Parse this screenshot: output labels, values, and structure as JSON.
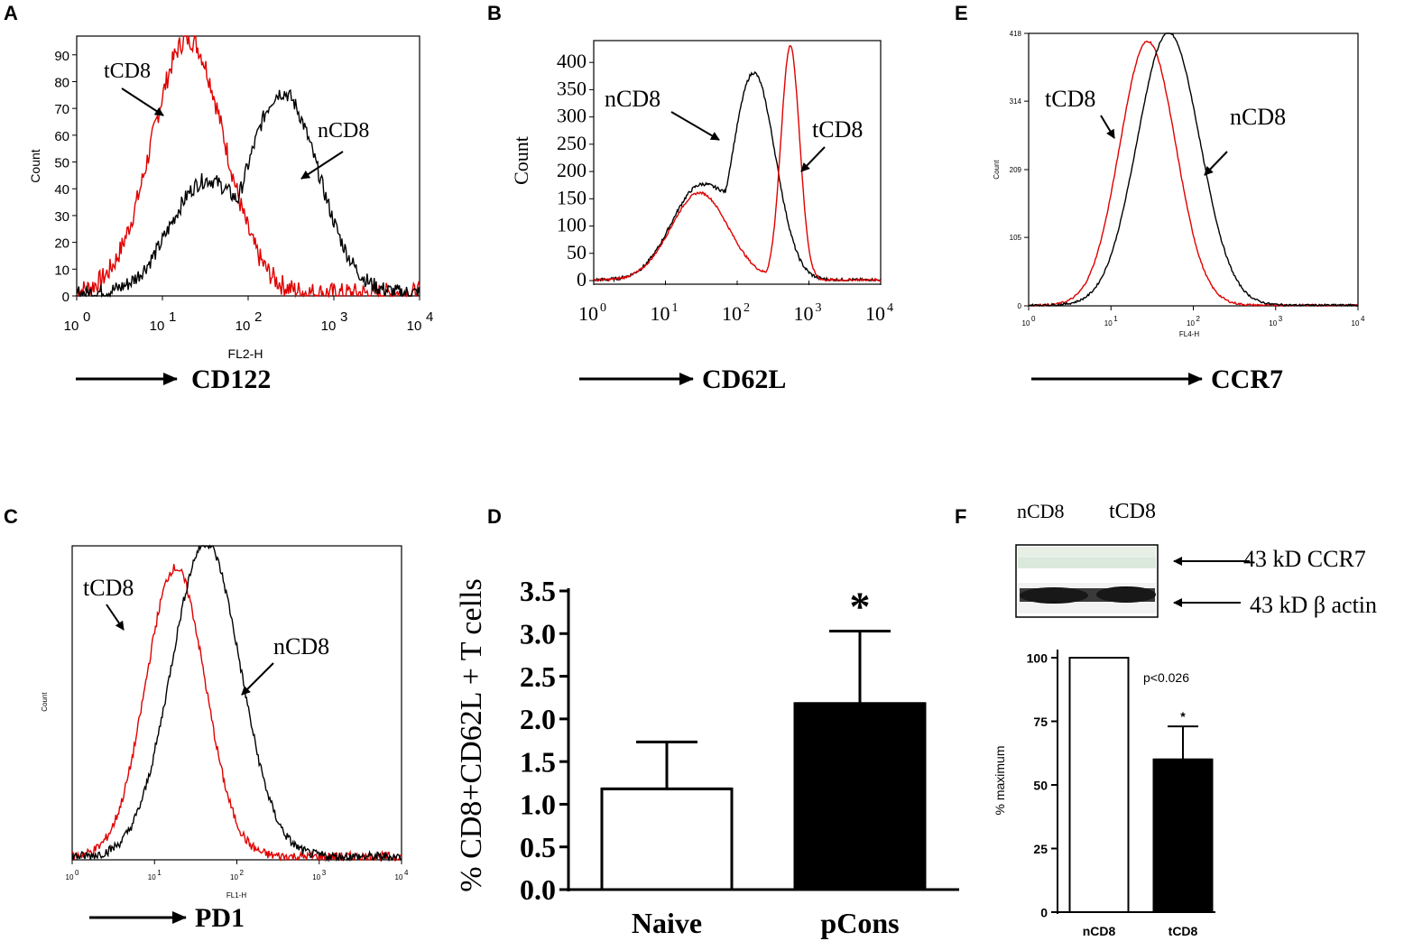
{
  "panels": {
    "A": {
      "letter": "A"
    },
    "B": {
      "letter": "B"
    },
    "C": {
      "letter": "C"
    },
    "D": {
      "letter": "D"
    },
    "E": {
      "letter": "E"
    },
    "F": {
      "letter": "F"
    }
  },
  "colors": {
    "naive": "#000000",
    "tolerant": "#e00000"
  },
  "chart_data": [
    {
      "id": "A",
      "type": "line",
      "scale": "log",
      "title": "",
      "xlabel": "FL2-H",
      "ylabel": "Count",
      "marker": "CD122",
      "xlim": [
        1,
        10000
      ],
      "ylim": [
        0,
        97
      ],
      "xticks": [
        "10",
        "10",
        "10",
        "10",
        "10"
      ],
      "xtick_exponents": [
        "0",
        "1",
        "2",
        "3",
        "4"
      ],
      "yticks": [
        "0",
        "10",
        "20",
        "30",
        "40",
        "50",
        "60",
        "70",
        "80",
        "90"
      ],
      "series": [
        {
          "name": "tCD8",
          "color": "#e00000",
          "peak_x": 20,
          "peak_y": 95,
          "width": 0.42,
          "noise": 8
        },
        {
          "name": "nCD8",
          "color": "#000000",
          "peak_x": 250,
          "peak_y": 75,
          "width": 0.42,
          "shoulder_x": 30,
          "shoulder_y": 40,
          "noise": 6
        }
      ]
    },
    {
      "id": "B",
      "type": "line",
      "scale": "log",
      "title": "",
      "xlabel": "",
      "ylabel": "Count",
      "marker": "CD62L",
      "xlim": [
        1,
        10000
      ],
      "ylim": [
        0,
        440
      ],
      "xticks": [
        "10",
        "10",
        "10",
        "10",
        "10"
      ],
      "xtick_exponents": [
        "0",
        "1",
        "2",
        "3",
        "4"
      ],
      "yticks": [
        "0",
        "50",
        "100",
        "150",
        "200",
        "250",
        "300",
        "350",
        "400"
      ],
      "series": [
        {
          "name": "nCD8",
          "color": "#000000",
          "peak_x": 170,
          "peak_y": 380,
          "width": 0.3,
          "shoulder_x": 30,
          "shoulder_y": 170,
          "noise": 6
        },
        {
          "name": "tCD8",
          "color": "#e00000",
          "peak_x": 550,
          "peak_y": 430,
          "width": 0.13,
          "shoulder_x": 30,
          "shoulder_y": 160,
          "noise": 4
        }
      ]
    },
    {
      "id": "E",
      "type": "line",
      "scale": "log",
      "title": "",
      "xlabel": "FL4-H",
      "ylabel": "Count",
      "marker": "CCR7",
      "xlim": [
        1,
        10000
      ],
      "ylim": [
        0,
        418
      ],
      "xticks": [
        "10",
        "10",
        "10",
        "10",
        "10"
      ],
      "xtick_exponents": [
        "0",
        "1",
        "2",
        "3",
        "4"
      ],
      "yticks": [
        "0",
        "105",
        "209",
        "314",
        "418"
      ],
      "series": [
        {
          "name": "tCD8",
          "color": "#e00000",
          "peak_x": 28,
          "peak_y": 405,
          "width": 0.34,
          "noise": 3
        },
        {
          "name": "nCD8",
          "color": "#000000",
          "peak_x": 50,
          "peak_y": 418,
          "width": 0.38,
          "noise": 3
        }
      ]
    },
    {
      "id": "C",
      "type": "line",
      "scale": "log",
      "title": "",
      "xlabel": "FL1-H",
      "ylabel": "Count",
      "marker": "PD1",
      "xlim": [
        1,
        10000
      ],
      "ylim": [
        0,
        100
      ],
      "xticks": [
        "10",
        "10",
        "10",
        "10",
        "10"
      ],
      "xtick_exponents": [
        "0",
        "1",
        "2",
        "3",
        "4"
      ],
      "yticks": [],
      "series": [
        {
          "name": "tCD8",
          "color": "#e00000",
          "peak_x": 18,
          "peak_y": 92,
          "width": 0.36,
          "noise": 3
        },
        {
          "name": "nCD8",
          "color": "#000000",
          "peak_x": 42,
          "peak_y": 100,
          "width": 0.42,
          "noise": 3
        }
      ]
    },
    {
      "id": "D",
      "type": "bar",
      "title": "",
      "xlabel": "",
      "ylabel": "% CD8+CD62L + T cells",
      "categories": [
        "Naive",
        "pCons"
      ],
      "values": [
        1.18,
        2.18
      ],
      "errors": [
        0.55,
        0.85
      ],
      "fills": [
        "#ffffff",
        "#000000"
      ],
      "ylim": [
        0,
        3.5
      ],
      "yticks": [
        "0.0",
        "0.5",
        "1.0",
        "1.5",
        "2.0",
        "2.5",
        "3.0",
        "3.5"
      ],
      "annotation": "*"
    },
    {
      "id": "F",
      "type": "bar",
      "title": "",
      "xlabel": "",
      "ylabel": "% maximum",
      "categories": [
        "nCD8",
        "tCD8"
      ],
      "values": [
        100,
        60
      ],
      "errors": [
        0,
        13
      ],
      "fills": [
        "#ffffff",
        "#000000"
      ],
      "ylim": [
        0,
        100
      ],
      "yticks": [
        "0",
        "25",
        "50",
        "75",
        "100"
      ],
      "annotation": "*",
      "pvalue": "p<0.026"
    }
  ],
  "blot": {
    "lanes": [
      "nCD8",
      "tCD8"
    ],
    "bands": [
      "43 kD CCR7",
      "43 kD β actin"
    ]
  }
}
